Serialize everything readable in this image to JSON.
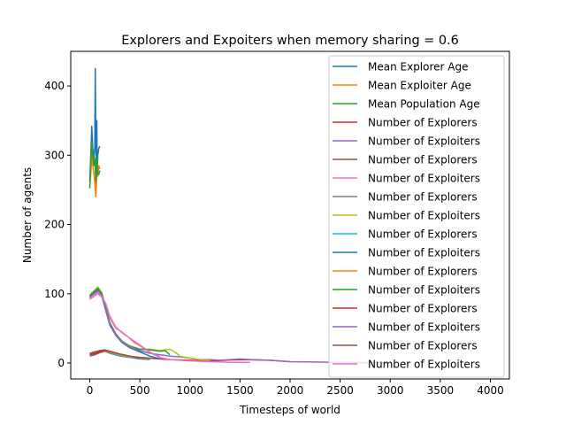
{
  "chart_data": {
    "type": "line",
    "title": "Explorers and Expoiters when memory sharing = 0.6",
    "xlabel": "Timesteps of world",
    "ylabel": "Number of agents",
    "xlim": [
      -190,
      4190
    ],
    "ylim": [
      -23,
      450
    ],
    "xticks": [
      0,
      500,
      1000,
      1500,
      2000,
      2500,
      3000,
      3500,
      4000
    ],
    "yticks": [
      0,
      100,
      200,
      300,
      400
    ],
    "grid": false,
    "legend_position": "top-right",
    "series": [
      {
        "name": "Mean Explorer Age",
        "color": "#1f77b4",
        "points": [
          [
            0,
            262
          ],
          [
            10,
            300
          ],
          [
            20,
            342
          ],
          [
            30,
            310
          ],
          [
            40,
            295
          ],
          [
            50,
            312
          ],
          [
            55,
            425
          ],
          [
            60,
            330
          ],
          [
            65,
            258
          ],
          [
            70,
            350
          ],
          [
            75,
            270
          ],
          [
            80,
            300
          ],
          [
            90,
            310
          ],
          [
            100,
            313
          ]
        ]
      },
      {
        "name": "Mean Exploiter Age",
        "color": "#ff7f0e",
        "points": [
          [
            0,
            255
          ],
          [
            10,
            272
          ],
          [
            20,
            300
          ],
          [
            30,
            285
          ],
          [
            40,
            275
          ],
          [
            50,
            262
          ],
          [
            60,
            240
          ],
          [
            70,
            268
          ],
          [
            80,
            270
          ],
          [
            90,
            285
          ],
          [
            100,
            280
          ]
        ]
      },
      {
        "name": "Mean Population Age",
        "color": "#2ca02c",
        "points": [
          [
            0,
            252
          ],
          [
            10,
            290
          ],
          [
            20,
            318
          ],
          [
            30,
            300
          ],
          [
            40,
            285
          ],
          [
            50,
            295
          ],
          [
            60,
            262
          ],
          [
            70,
            300
          ],
          [
            80,
            275
          ],
          [
            90,
            272
          ],
          [
            100,
            278
          ]
        ]
      },
      {
        "name": "Number of Explorers",
        "color": "#d62728",
        "points": [
          [
            0,
            12
          ],
          [
            50,
            14
          ],
          [
            100,
            16
          ],
          [
            150,
            18
          ],
          [
            200,
            16
          ],
          [
            300,
            12
          ],
          [
            400,
            9
          ],
          [
            600,
            7
          ],
          [
            800,
            5
          ],
          [
            1000,
            4
          ],
          [
            1200,
            3
          ],
          [
            1500,
            5
          ],
          [
            1800,
            4
          ],
          [
            2000,
            2
          ]
        ]
      },
      {
        "name": "Number of Exploiters",
        "color": "#9467bd",
        "points": [
          [
            0,
            95
          ],
          [
            40,
            100
          ],
          [
            80,
            108
          ],
          [
            120,
            100
          ],
          [
            160,
            75
          ],
          [
            200,
            55
          ],
          [
            260,
            40
          ],
          [
            320,
            30
          ],
          [
            400,
            22
          ],
          [
            500,
            18
          ],
          [
            600,
            14
          ],
          [
            700,
            12
          ],
          [
            800,
            10
          ],
          [
            900,
            9
          ],
          [
            1000,
            7
          ],
          [
            1100,
            5
          ],
          [
            1200,
            5
          ],
          [
            1300,
            4
          ],
          [
            1400,
            5
          ],
          [
            1500,
            6
          ],
          [
            1600,
            5
          ],
          [
            1800,
            4
          ],
          [
            2000,
            2
          ],
          [
            2500,
            1
          ],
          [
            3000,
            0
          ]
        ]
      },
      {
        "name": "Number of Explorers",
        "color": "#8c564b",
        "points": [
          [
            0,
            10
          ],
          [
            50,
            12
          ],
          [
            100,
            15
          ],
          [
            150,
            17
          ],
          [
            200,
            15
          ],
          [
            300,
            12
          ],
          [
            400,
            9
          ],
          [
            500,
            8
          ],
          [
            600,
            7
          ],
          [
            700,
            6
          ]
        ]
      },
      {
        "name": "Number of Exploiters",
        "color": "#e377c2",
        "points": [
          [
            0,
            92
          ],
          [
            40,
            96
          ],
          [
            80,
            100
          ],
          [
            120,
            95
          ],
          [
            160,
            85
          ],
          [
            200,
            65
          ],
          [
            260,
            50
          ],
          [
            320,
            45
          ],
          [
            380,
            38
          ],
          [
            440,
            30
          ],
          [
            500,
            25
          ],
          [
            600,
            15
          ],
          [
            700,
            8
          ],
          [
            800,
            5
          ],
          [
            1000,
            3
          ],
          [
            1200,
            2
          ],
          [
            1400,
            1
          ],
          [
            1600,
            1
          ]
        ]
      },
      {
        "name": "Number of Explorers",
        "color": "#7f7f7f",
        "points": [
          [
            0,
            14
          ],
          [
            50,
            16
          ],
          [
            100,
            18
          ],
          [
            150,
            17
          ],
          [
            200,
            14
          ],
          [
            300,
            10
          ],
          [
            400,
            8
          ],
          [
            500,
            6
          ],
          [
            600,
            5
          ]
        ]
      },
      {
        "name": "Number of Exploiters",
        "color": "#bcbd22",
        "points": [
          [
            0,
            98
          ],
          [
            40,
            104
          ],
          [
            80,
            110
          ],
          [
            120,
            102
          ],
          [
            160,
            80
          ],
          [
            200,
            58
          ],
          [
            260,
            42
          ],
          [
            320,
            30
          ],
          [
            400,
            25
          ],
          [
            500,
            20
          ],
          [
            600,
            20
          ],
          [
            700,
            18
          ],
          [
            800,
            20
          ],
          [
            850,
            16
          ],
          [
            900,
            10
          ],
          [
            1000,
            7
          ],
          [
            1100,
            5
          ],
          [
            1200,
            4
          ]
        ]
      },
      {
        "name": "Number of Explorers",
        "color": "#17becf",
        "points": [
          [
            0,
            11
          ],
          [
            50,
            14
          ],
          [
            100,
            17
          ],
          [
            150,
            18
          ],
          [
            200,
            15
          ],
          [
            300,
            11
          ],
          [
            400,
            8
          ],
          [
            500,
            6
          ]
        ]
      },
      {
        "name": "Number of Exploiters",
        "color": "#1f77b4",
        "points": [
          [
            0,
            96
          ],
          [
            40,
            102
          ],
          [
            80,
            106
          ],
          [
            120,
            98
          ],
          [
            160,
            78
          ],
          [
            200,
            55
          ],
          [
            260,
            40
          ],
          [
            320,
            30
          ],
          [
            400,
            22
          ],
          [
            500,
            16
          ],
          [
            600,
            10
          ],
          [
            700,
            6
          ]
        ]
      },
      {
        "name": "Number of Explorers",
        "color": "#ff7f0e",
        "points": [
          [
            0,
            13
          ],
          [
            50,
            15
          ],
          [
            100,
            17
          ],
          [
            150,
            18
          ],
          [
            200,
            16
          ],
          [
            300,
            12
          ],
          [
            400,
            9
          ],
          [
            500,
            7
          ]
        ]
      },
      {
        "name": "Number of Exploiters",
        "color": "#2ca02c",
        "points": [
          [
            0,
            97
          ],
          [
            40,
            103
          ],
          [
            80,
            108
          ],
          [
            120,
            100
          ],
          [
            160,
            80
          ],
          [
            200,
            58
          ],
          [
            260,
            42
          ],
          [
            320,
            32
          ],
          [
            400,
            24
          ],
          [
            500,
            20
          ],
          [
            600,
            19
          ],
          [
            700,
            17
          ],
          [
            750,
            18
          ],
          [
            800,
            12
          ]
        ]
      },
      {
        "name": "Number of Explorers",
        "color": "#d62728",
        "points": [
          [
            0,
            12
          ],
          [
            50,
            14
          ],
          [
            100,
            16
          ],
          [
            150,
            18
          ],
          [
            200,
            17
          ],
          [
            300,
            13
          ],
          [
            400,
            10
          ],
          [
            500,
            8
          ]
        ]
      },
      {
        "name": "Number of Exploiters",
        "color": "#9467bd",
        "points": [
          [
            0,
            94
          ],
          [
            40,
            99
          ],
          [
            80,
            104
          ],
          [
            120,
            96
          ],
          [
            160,
            76
          ],
          [
            200,
            56
          ],
          [
            260,
            41
          ],
          [
            320,
            31
          ],
          [
            400,
            23
          ],
          [
            500,
            18
          ],
          [
            600,
            14
          ]
        ]
      },
      {
        "name": "Number of Explorers",
        "color": "#8c564b",
        "points": [
          [
            0,
            14
          ],
          [
            50,
            16
          ],
          [
            100,
            18
          ],
          [
            150,
            19
          ],
          [
            200,
            17
          ],
          [
            300,
            13
          ],
          [
            400,
            10
          ],
          [
            500,
            7
          ]
        ]
      },
      {
        "name": "Number of Exploiters",
        "color": "#e377c2",
        "points": [
          [
            0,
            93
          ],
          [
            40,
            98
          ],
          [
            80,
            102
          ],
          [
            120,
            96
          ],
          [
            160,
            86
          ],
          [
            200,
            68
          ],
          [
            260,
            52
          ],
          [
            320,
            44
          ],
          [
            400,
            36
          ],
          [
            500,
            26
          ],
          [
            600,
            16
          ],
          [
            700,
            9
          ]
        ]
      }
    ]
  }
}
